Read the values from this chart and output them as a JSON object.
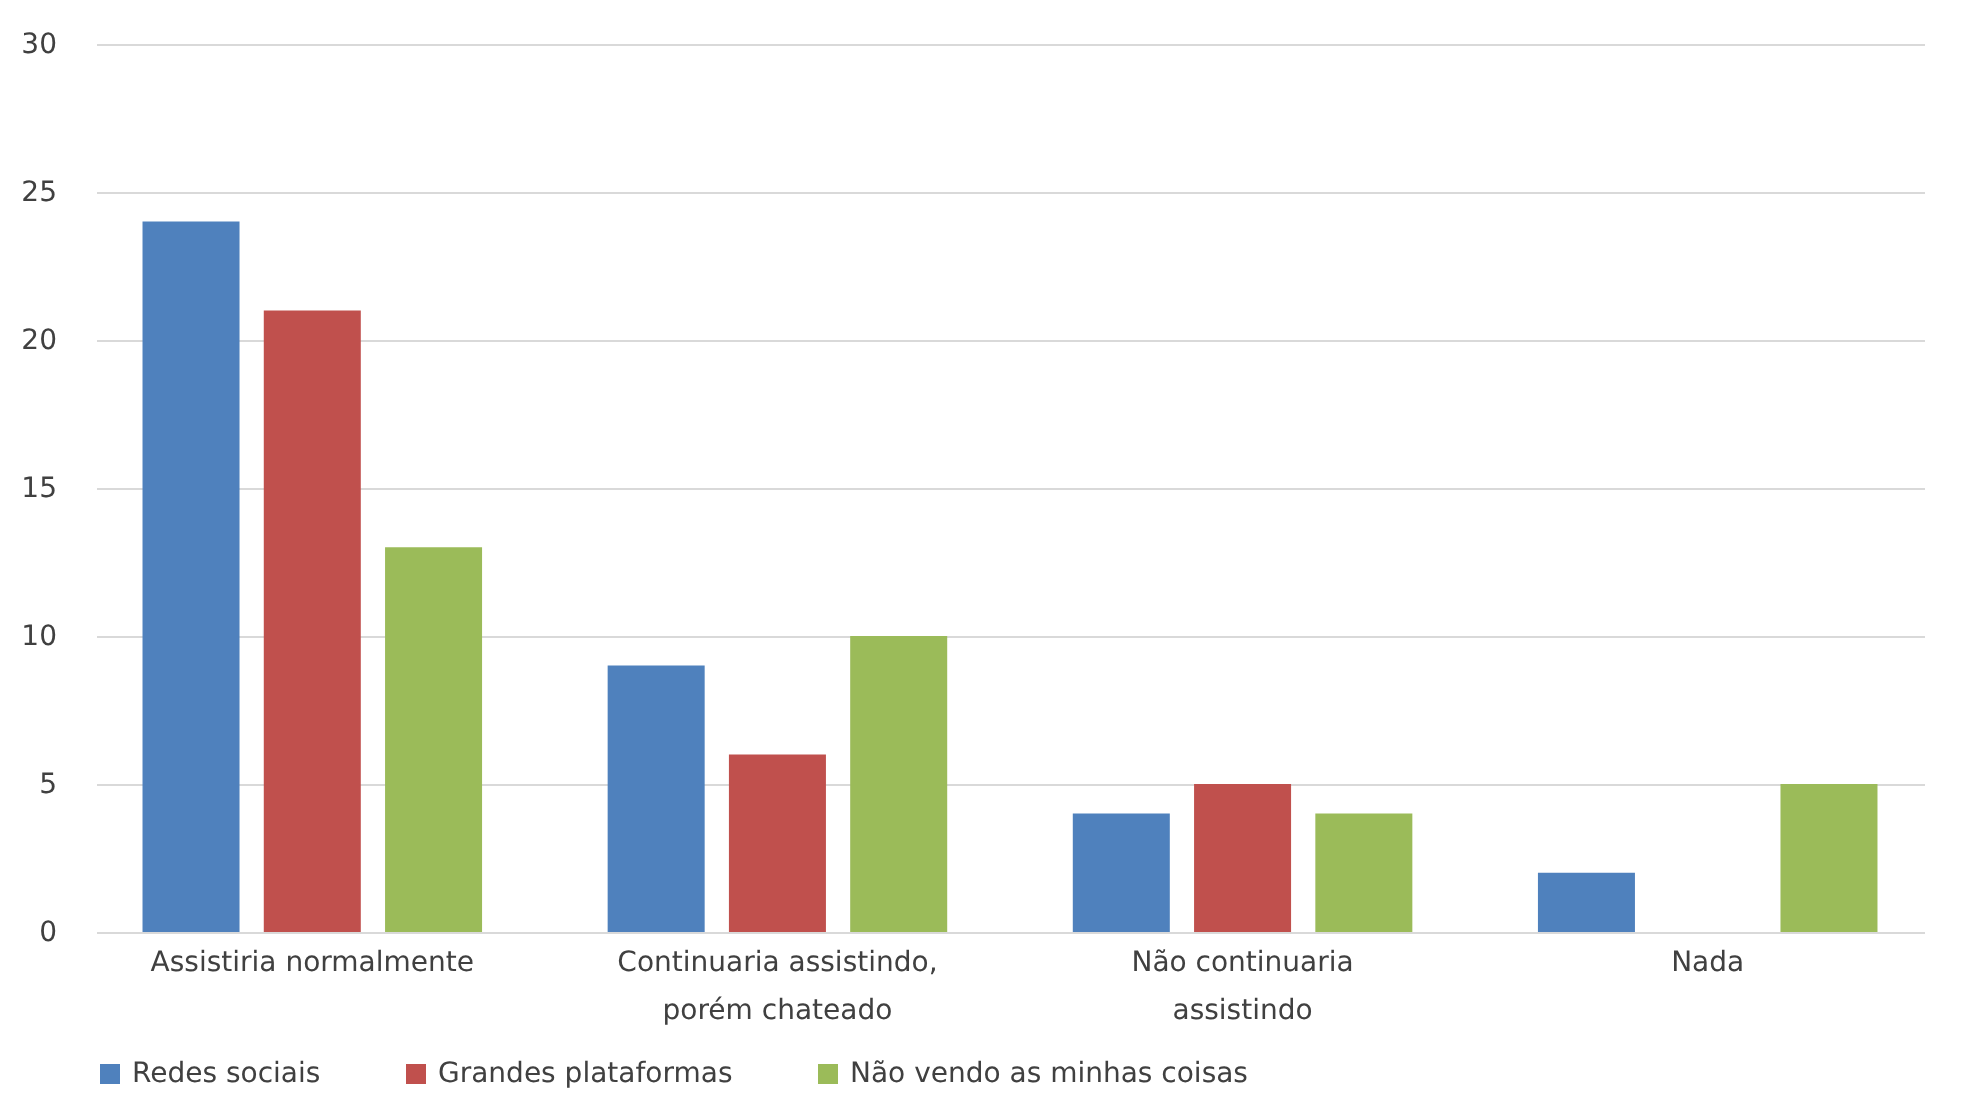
{
  "chart_data": {
    "type": "bar",
    "categories": [
      "Assistiria normalmente",
      "Continuaria assistindo, porém chateado",
      "Não continuaria assistindo",
      "Nada"
    ],
    "series": [
      {
        "name": "Redes sociais",
        "color": "#4f81bd",
        "values": [
          24,
          9,
          4,
          2
        ]
      },
      {
        "name": "Grandes plataformas",
        "color": "#c0504d",
        "values": [
          21,
          6,
          5,
          0
        ]
      },
      {
        "name": "Não vendo as minhas coisas",
        "color": "#9bbb59",
        "values": [
          13,
          10,
          4,
          5
        ]
      }
    ],
    "ylim": [
      0,
      30
    ],
    "yticks": [
      0,
      5,
      10,
      15,
      20,
      25,
      30
    ],
    "grid": "y",
    "legend": "bottom"
  }
}
